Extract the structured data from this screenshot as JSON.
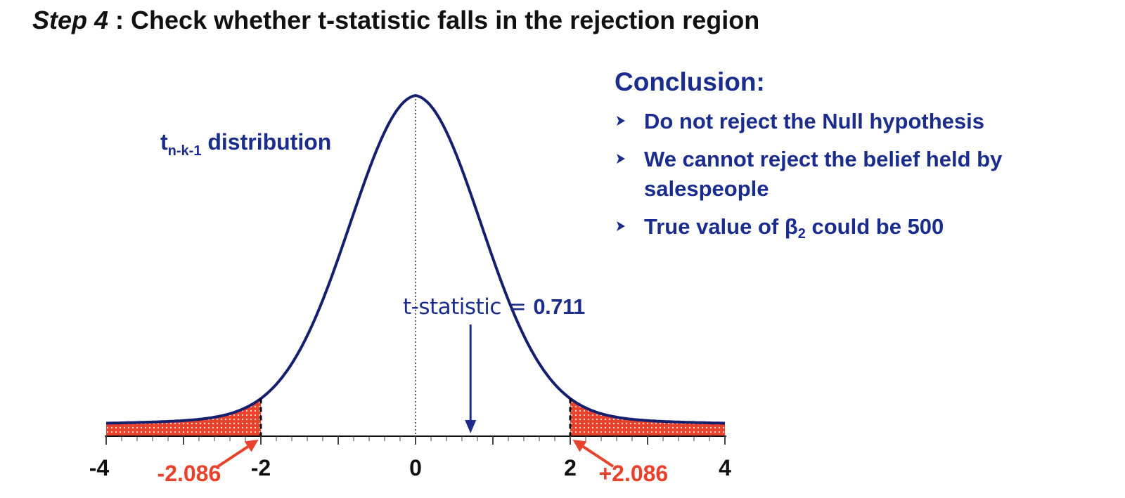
{
  "title": {
    "step": "Step 4",
    "separator": " : ",
    "text": "Check whether t-statistic falls in the rejection region"
  },
  "distribution_label": {
    "main": "t",
    "subscript": "n-k-1",
    "suffix": " distribution"
  },
  "statistic": {
    "name": "t-statistic",
    "equals": "=",
    "value_text": "0.711",
    "value": 0.711
  },
  "critical_values": {
    "lower_text": "-2.086",
    "upper_text": "+2.086",
    "lower": -2.086,
    "upper": 2.086
  },
  "axis": {
    "min": -4,
    "max": 4,
    "tick_labels": [
      "-4",
      "-2",
      "0",
      "2",
      "4"
    ]
  },
  "conclusion": {
    "heading": "Conclusion:",
    "bullets": [
      {
        "text": "Do not reject the Null hypothesis"
      },
      {
        "text": "We cannot reject the belief held by salespeople"
      },
      {
        "text_before": "True value of β",
        "subscript": "2",
        "text_after": " could be 500"
      }
    ]
  },
  "colors": {
    "curve": "#14206e",
    "text_blue": "#1a2c8c",
    "rejection_fill": "#e8412c",
    "critical_text": "#e8412c",
    "axis": "#111111"
  }
}
